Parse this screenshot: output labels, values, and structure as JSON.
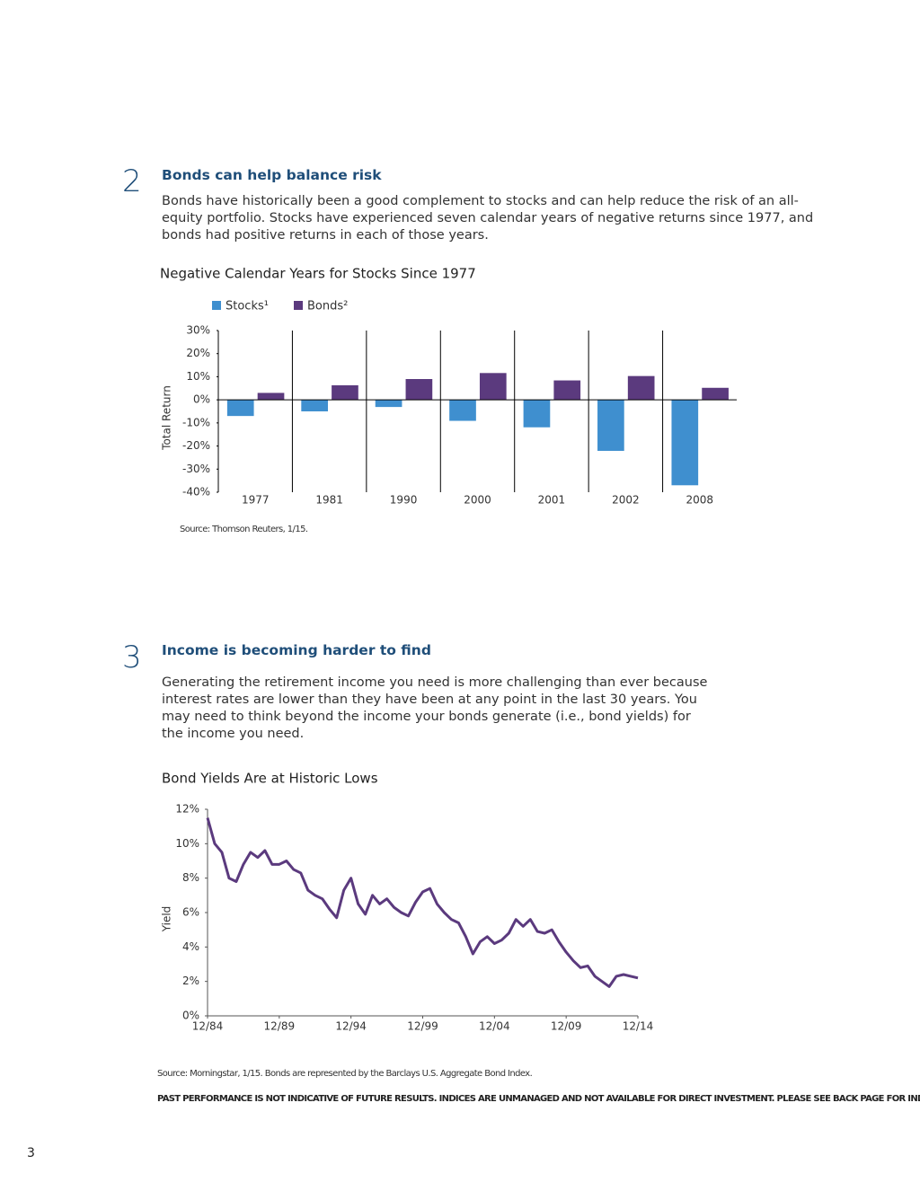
{
  "sections": [
    {
      "number": "2",
      "heading": "Bonds can help balance risk",
      "body": "Bonds have historically been a good complement to stocks and can help reduce the risk of an all-equity portfolio. Stocks have experienced seven calendar years of negative returns since 1977, and bonds had positive returns in each of those years.",
      "source": "Source: Thomson Reuters, 1/15."
    },
    {
      "number": "3",
      "heading": "Income is becoming harder to find",
      "body": "Generating the retirement income you need is more challenging than ever because interest rates are lower than they have been at any point in the last 30 years. You may need to think beyond the income your bonds generate (i.e., bond yields) for the income you need.",
      "source": "Source: Morningstar, 1/15. Bonds are represented by the Barclays U.S. Aggregate Bond Index."
    }
  ],
  "disclaimer": "PAST PERFORMANCE IS NOT INDICATIVE OF FUTURE RESULTS. INDICES ARE UNMANAGED AND NOT AVAILABLE FOR DIRECT INVESTMENT. PLEASE SEE BACK PAGE FOR INDEX DEFINITIONS.",
  "page_number": "3",
  "chart_data": [
    {
      "type": "bar",
      "title": "Negative Calendar Years for Stocks Since 1977",
      "ylabel": "Total Return",
      "categories": [
        "1977",
        "1981",
        "1990",
        "2000",
        "2001",
        "2002",
        "2008"
      ],
      "series": [
        {
          "name": "Stocks¹",
          "color": "#3f8fcf",
          "values": [
            -7.0,
            -5.0,
            -3.1,
            -9.1,
            -11.9,
            -22.1,
            -37.0
          ]
        },
        {
          "name": "Bonds²",
          "color": "#5b3a7e",
          "values": [
            3.0,
            6.3,
            9.0,
            11.6,
            8.4,
            10.3,
            5.2
          ]
        }
      ],
      "ylim": [
        -40,
        30
      ],
      "yticks": [
        {
          "value": 30,
          "label": "30%"
        },
        {
          "value": 20,
          "label": "20%"
        },
        {
          "value": 10,
          "label": "10%"
        },
        {
          "value": 0,
          "label": "0%"
        },
        {
          "value": -10,
          "label": "-10%"
        },
        {
          "value": -20,
          "label": "-20%"
        },
        {
          "value": -30,
          "label": "-30%"
        },
        {
          "value": -40,
          "label": "-40%"
        }
      ]
    },
    {
      "type": "line",
      "title": "Bond Yields Are at Historic Lows",
      "ylabel": "Yield",
      "color": "#5b3a7e",
      "x": [
        "1984-12",
        "1985-06",
        "1985-12",
        "1986-06",
        "1986-12",
        "1987-06",
        "1987-12",
        "1988-06",
        "1988-12",
        "1989-06",
        "1989-12",
        "1990-06",
        "1990-12",
        "1991-06",
        "1991-12",
        "1992-06",
        "1992-12",
        "1993-06",
        "1993-12",
        "1994-06",
        "1994-12",
        "1995-06",
        "1995-12",
        "1996-06",
        "1996-12",
        "1997-06",
        "1997-12",
        "1998-06",
        "1998-12",
        "1999-06",
        "1999-12",
        "2000-06",
        "2000-12",
        "2001-06",
        "2001-12",
        "2002-06",
        "2002-12",
        "2003-06",
        "2003-12",
        "2004-06",
        "2004-12",
        "2005-06",
        "2005-12",
        "2006-06",
        "2006-12",
        "2007-06",
        "2007-12",
        "2008-06",
        "2008-12",
        "2009-06",
        "2009-12",
        "2010-06",
        "2010-12",
        "2011-06",
        "2011-12",
        "2012-06",
        "2012-12",
        "2013-06",
        "2013-12",
        "2014-06",
        "2014-12"
      ],
      "values": [
        11.5,
        10.0,
        9.5,
        8.0,
        7.8,
        8.8,
        9.5,
        9.2,
        9.6,
        8.8,
        8.8,
        9.0,
        8.5,
        8.3,
        7.3,
        7.0,
        6.8,
        6.2,
        5.7,
        7.3,
        8.0,
        6.5,
        5.9,
        7.0,
        6.5,
        6.8,
        6.3,
        6.0,
        5.8,
        6.6,
        7.2,
        7.4,
        6.5,
        6.0,
        5.6,
        5.4,
        4.6,
        3.6,
        4.3,
        4.6,
        4.2,
        4.4,
        4.8,
        5.6,
        5.2,
        5.6,
        4.9,
        4.8,
        5.0,
        4.3,
        3.7,
        3.2,
        2.8,
        2.9,
        2.3,
        2.0,
        1.7,
        2.3,
        2.4,
        2.3,
        2.2
      ],
      "xlim": [
        "1984-12",
        "2014-12"
      ],
      "xticks": [
        {
          "value": "1984-12",
          "label": "12/84"
        },
        {
          "value": "1989-12",
          "label": "12/89"
        },
        {
          "value": "1994-12",
          "label": "12/94"
        },
        {
          "value": "1999-12",
          "label": "12/99"
        },
        {
          "value": "2004-12",
          "label": "12/04"
        },
        {
          "value": "2009-12",
          "label": "12/09"
        },
        {
          "value": "2014-12",
          "label": "12/14"
        }
      ],
      "ylim": [
        0,
        12
      ],
      "yticks": [
        {
          "value": 0,
          "label": "0%"
        },
        {
          "value": 2,
          "label": "2%"
        },
        {
          "value": 4,
          "label": "4%"
        },
        {
          "value": 6,
          "label": "6%"
        },
        {
          "value": 8,
          "label": "8%"
        },
        {
          "value": 10,
          "label": "10%"
        },
        {
          "value": 12,
          "label": "12%"
        }
      ]
    }
  ]
}
